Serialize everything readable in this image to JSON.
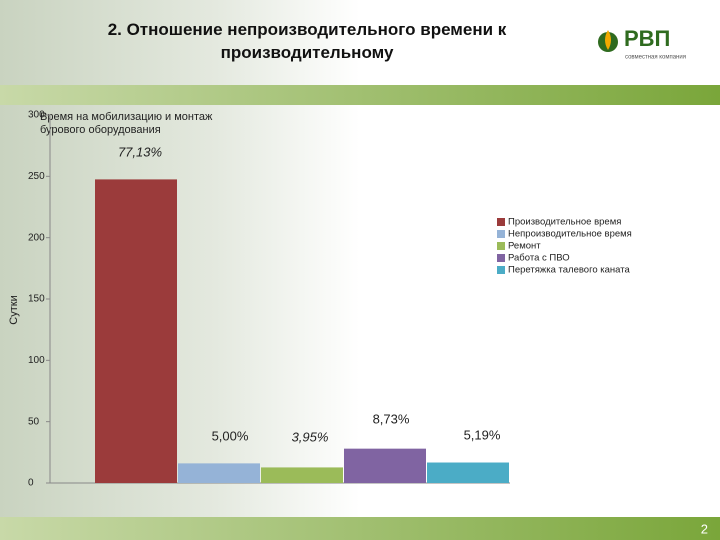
{
  "slide": {
    "title": "2. Отношение непроизводительного времени к производительному",
    "logo": "РВП",
    "logo_subtitle": "совместная компания",
    "page_number": "2"
  },
  "chart_data": {
    "type": "bar",
    "title": "Время на мобилизацию и монтаж бурового оборудования",
    "y_label": "Сутки",
    "categories": [
      null
    ],
    "series": [
      {
        "name": "Производительное время",
        "color": "#9b3b3b",
        "values": [
          247.5
        ]
      },
      {
        "name": "Непроизводительное время",
        "color": "#95b3d7",
        "values": [
          16
        ]
      },
      {
        "name": "Ремонт",
        "color": "#9bbb59",
        "values": [
          12.7
        ]
      },
      {
        "name": "Работа с ПВО",
        "color": "#8064a2",
        "values": [
          28
        ]
      },
      {
        "name": "Перетяжка талевого каната",
        "color": "#4bacc6",
        "values": [
          16.7
        ]
      }
    ],
    "annotations": [
      "77,13%",
      "5,00%",
      "3,95%",
      "8,73%",
      "5,19%"
    ],
    "ylim": [
      0,
      300
    ],
    "yticks": [
      0,
      50,
      100,
      150,
      200,
      250,
      300
    ],
    "legend": "right"
  }
}
